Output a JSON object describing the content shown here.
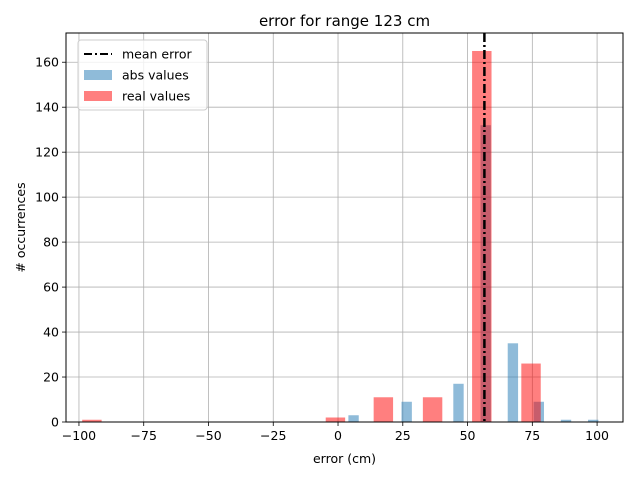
{
  "chart_data": {
    "type": "bar",
    "title": "error for range 123 cm",
    "xlabel": "error (cm)",
    "ylabel": "# occurrences",
    "xlim": [
      -105,
      110
    ],
    "ylim": [
      0,
      173
    ],
    "xticks": [
      -100,
      -75,
      -50,
      -25,
      0,
      25,
      50,
      75,
      100
    ],
    "xtick_labels": [
      "−100",
      "−75",
      "−50",
      "−25",
      "0",
      "25",
      "50",
      "75",
      "100"
    ],
    "yticks": [
      0,
      20,
      40,
      60,
      80,
      100,
      120,
      140,
      160
    ],
    "ytick_labels": [
      "0",
      "20",
      "40",
      "60",
      "80",
      "100",
      "120",
      "140",
      "160"
    ],
    "grid": true,
    "legend_position": "upper left",
    "mean_error": 56.5,
    "series": [
      {
        "name": "abs values",
        "color": "#1f77b4",
        "alpha": 0.5,
        "bin_width": 4,
        "x": [
          6,
          26.5,
          46.5,
          57,
          67.5,
          77.5,
          88,
          98.5
        ],
        "values": [
          3,
          9,
          17,
          132,
          35,
          9,
          1,
          1
        ]
      },
      {
        "name": "real values",
        "color": "#ff0000",
        "alpha": 0.5,
        "bin_width": 7.5,
        "x": [
          -95,
          -1,
          17.5,
          36.5,
          55.5,
          74.5
        ],
        "values": [
          1,
          2,
          11,
          11,
          165,
          26
        ]
      }
    ],
    "legend": [
      {
        "label": "mean error",
        "kind": "line",
        "color": "#000000"
      },
      {
        "label": "abs values",
        "kind": "patch",
        "color": "#1f77b4"
      },
      {
        "label": "real values",
        "kind": "patch",
        "color": "#ff0000"
      }
    ]
  }
}
